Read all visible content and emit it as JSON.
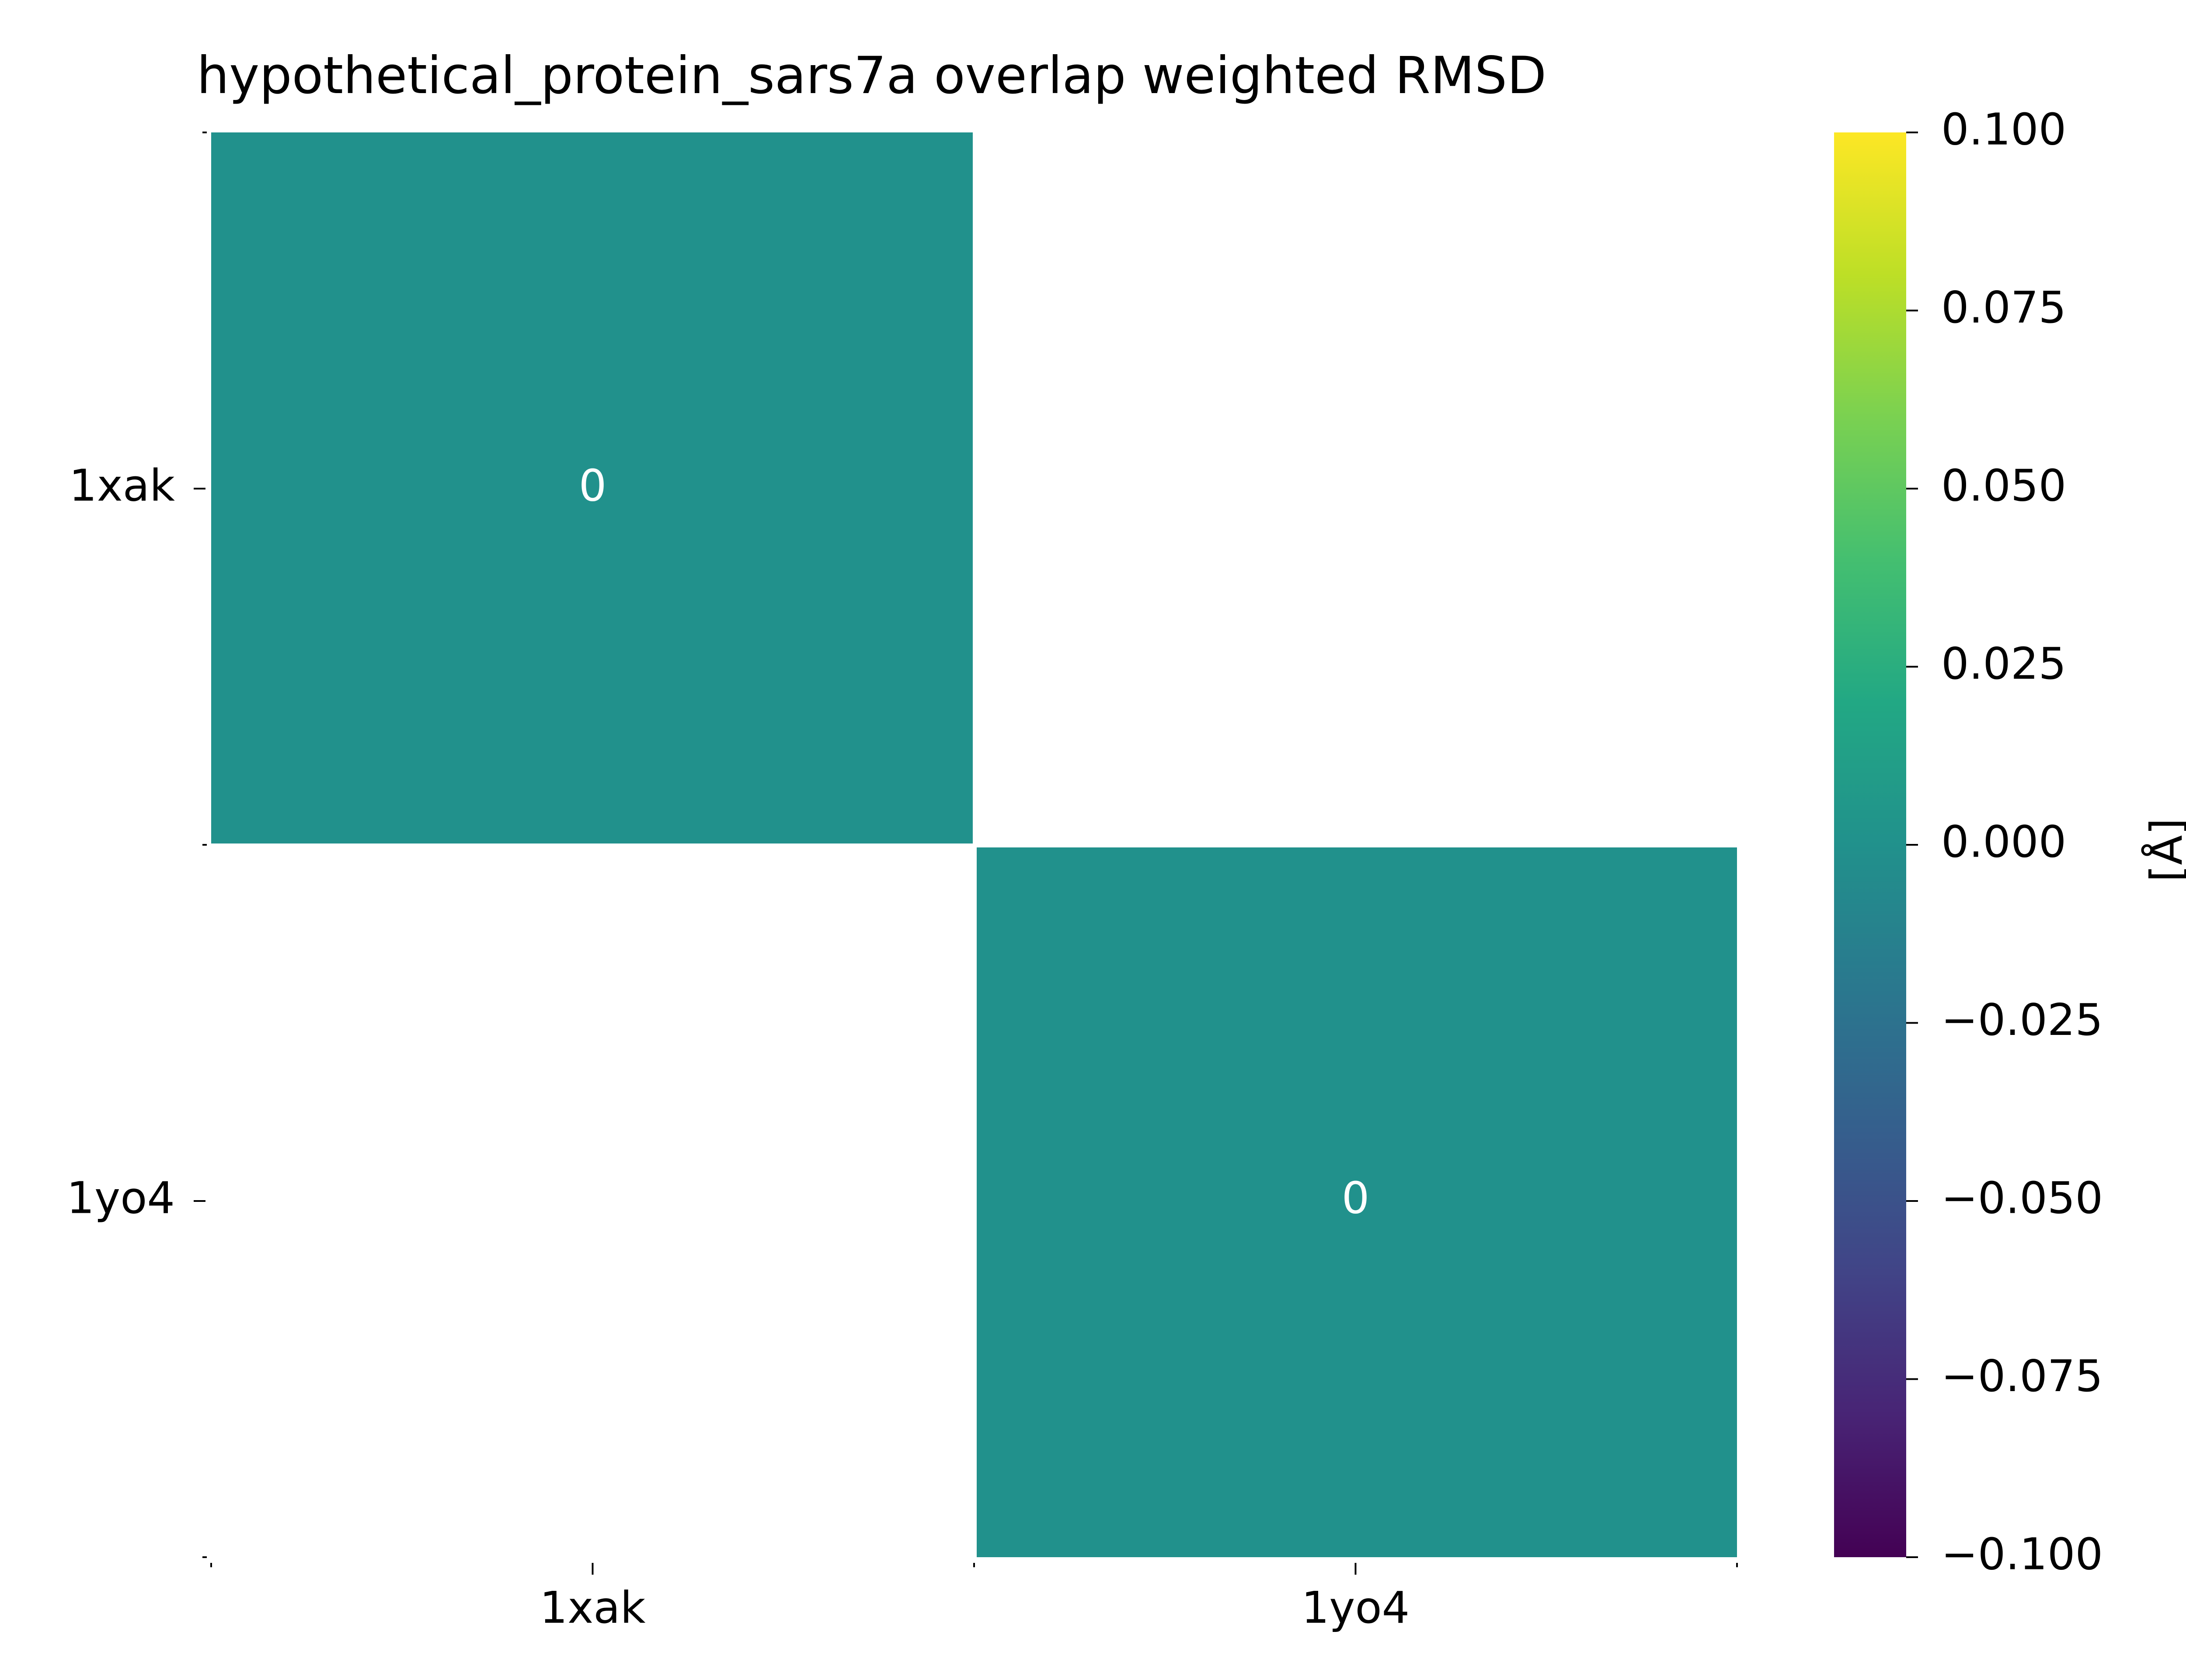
{
  "chart_data": {
    "type": "heatmap",
    "title": "hypothetical_protein_sars7a overlap weighted RMSD",
    "x_categories": [
      "1xak",
      "1yo4"
    ],
    "y_categories": [
      "1xak",
      "1yo4"
    ],
    "values": [
      [
        0,
        null
      ],
      [
        null,
        0
      ]
    ],
    "cell_labels": [
      [
        "0",
        null
      ],
      [
        null,
        "0"
      ]
    ],
    "colorbar": {
      "label": "[Å]",
      "range": [
        -0.1,
        0.1
      ],
      "ticks": [
        0.1,
        0.075,
        0.05,
        0.025,
        0.0,
        -0.025,
        -0.05,
        -0.075,
        -0.1
      ],
      "tick_labels": [
        "0.100",
        "0.075",
        "0.050",
        "0.025",
        "0.000",
        "−0.025",
        "−0.050",
        "−0.075",
        "−0.100"
      ],
      "colormap": "viridis"
    },
    "grid": false
  },
  "colors": {
    "cell_fill": "#21918c",
    "cell_text": "#ffffff",
    "axis_text": "#000000",
    "background": "#ffffff"
  }
}
